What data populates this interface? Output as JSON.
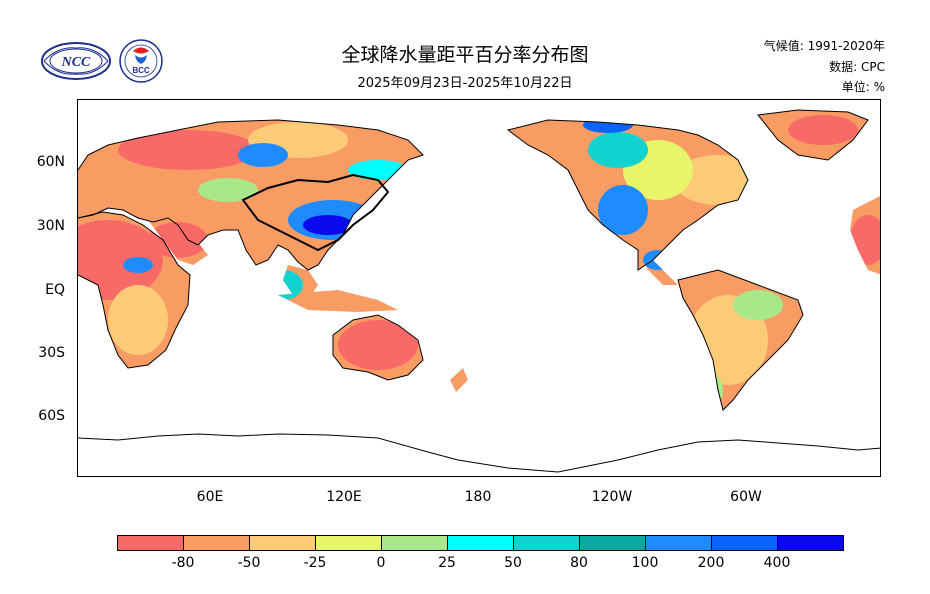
{
  "header": {
    "title": "全球降水量距平百分率分布图",
    "subtitle": "2025年09月23日-2025年10月22日",
    "climate_label": "气候值: 1991-2020年",
    "data_label": "数据: CPC",
    "unit_label": "单位: %"
  },
  "logos": {
    "ncc_text": "NCC",
    "bcc_text": "BCC"
  },
  "map": {
    "lat_labels": [
      "60N",
      "30N",
      "EQ",
      "30S",
      "60S"
    ],
    "lon_labels": [
      "60E",
      "120E",
      "180",
      "120W",
      "60W"
    ]
  },
  "colorbar": {
    "labels": [
      "-80",
      "-50",
      "-25",
      "0",
      "25",
      "50",
      "80",
      "100",
      "200",
      "400"
    ],
    "colors": [
      "#f86a68",
      "#f99c64",
      "#fbcb78",
      "#e6f56a",
      "#a8e88a",
      "#00ffff",
      "#12d2d0",
      "#0aa8a0",
      "#1e8cff",
      "#0a64ff",
      "#0a0aee"
    ]
  }
}
